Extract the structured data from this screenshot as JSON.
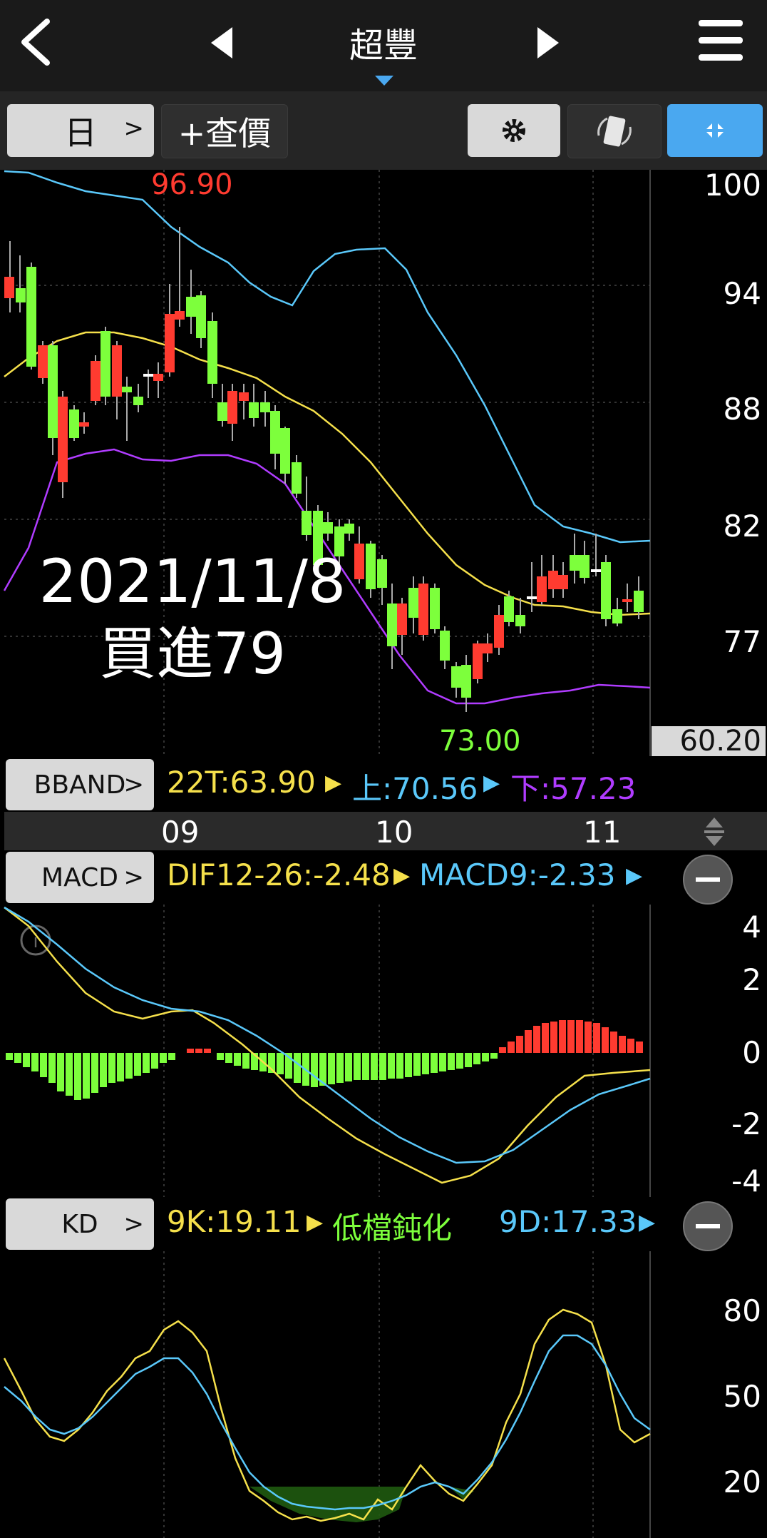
{
  "header": {
    "title": "超豐"
  },
  "toolbar": {
    "period_label": "日",
    "add_price_label": "+查價"
  },
  "main_chart": {
    "price_axis": [
      "100",
      "94",
      "88",
      "82",
      "77"
    ],
    "current_value_label": "60.20",
    "high_label": "96.90",
    "low_label": "73.00",
    "annotation_date": "2021/11/8",
    "annotation_action": "買進79",
    "indicator_button": "BBAND",
    "indicators": {
      "mid": "22T:63.90",
      "upper": "上:70.56",
      "lower": "下:57.23"
    },
    "month_labels": [
      "09",
      "10",
      "11"
    ]
  },
  "macd": {
    "button": "MACD",
    "dif": "DIF12-26:-2.48",
    "signal": "MACD9:-2.33",
    "axis": [
      "4",
      "2",
      "0",
      "-2",
      "-4"
    ]
  },
  "kd": {
    "button": "KD",
    "k": "9K:19.11",
    "status": "低檔鈍化",
    "d": "9D:17.33",
    "axis": [
      "80",
      "50",
      "20"
    ]
  },
  "colors": {
    "up": "#ff3b30",
    "down": "#7dff3c",
    "mid_line": "#f5e04b",
    "upper_line": "#5ac8fa",
    "lower_line": "#b03cff",
    "accent": "#4aa8f0"
  },
  "icons": {
    "back": "chevron-left-icon",
    "prev": "triangle-left-icon",
    "next": "triangle-right-icon",
    "menu": "hamburger-icon",
    "settings": "gear-icon",
    "rotate": "rotate-icon",
    "collapse": "collapse-arrows-icon"
  }
}
